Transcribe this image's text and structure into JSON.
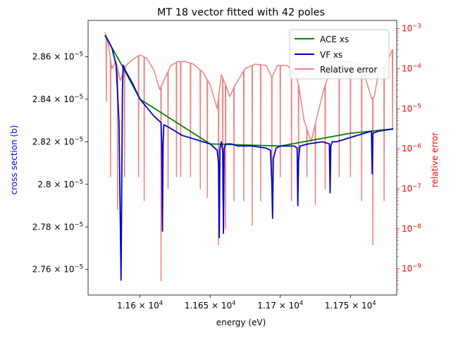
{
  "chart_data": {
    "type": "line",
    "title": "MT 18 vector fitted with 42 poles",
    "xlabel": "energy (eV)",
    "ylabel_left": "cross section (b)",
    "ylabel_right": "relative error",
    "xlim": [
      11563,
      11783
    ],
    "ylim_left": [
      2.748e-05,
      2.877e-05
    ],
    "ylim_right": [
      2.2e-10,
      0.0016
    ],
    "yscale_right": "log",
    "xticks": [
      {
        "value": 11600,
        "label": "1.16 × 10^4",
        "mant": "1.16",
        "exp": "4"
      },
      {
        "value": 11650,
        "label": "1.165 × 10^4",
        "mant": "1.165",
        "exp": "4"
      },
      {
        "value": 11700,
        "label": "1.17 × 10^4",
        "mant": "1.17",
        "exp": "4"
      },
      {
        "value": 11750,
        "label": "1.175 × 10^4",
        "mant": "1.175",
        "exp": "4"
      }
    ],
    "yticks_left": [
      {
        "value": 2.86e-05,
        "label": "2.86 × 10^-5",
        "mant": "2.86",
        "exp": "−5"
      },
      {
        "value": 2.84e-05,
        "label": "2.84 × 10^-5",
        "mant": "2.84",
        "exp": "−5"
      },
      {
        "value": 2.82e-05,
        "label": "2.82 × 10^-5",
        "mant": "2.82",
        "exp": "−5"
      },
      {
        "value": 2.8e-05,
        "label": "2.8 × 10^-5",
        "mant": "2.8",
        "exp": "−5"
      },
      {
        "value": 2.78e-05,
        "label": "2.78 × 10^-5",
        "mant": "2.78",
        "exp": "−5"
      },
      {
        "value": 2.76e-05,
        "label": "2.76 × 10^-5",
        "mant": "2.76",
        "exp": "−5"
      }
    ],
    "yticks_right": [
      {
        "value": 0.001,
        "label": "10^-3",
        "exp": "−3"
      },
      {
        "value": 0.0001,
        "label": "10^-4",
        "exp": "−4"
      },
      {
        "value": 1e-05,
        "label": "10^-5",
        "exp": "−5"
      },
      {
        "value": 1e-06,
        "label": "10^-6",
        "exp": "−6"
      },
      {
        "value": 1e-07,
        "label": "10^-7",
        "exp": "−7"
      },
      {
        "value": 1e-08,
        "label": "10^-8",
        "exp": "−8"
      },
      {
        "value": 1e-09,
        "label": "10^-9",
        "exp": "−9"
      }
    ],
    "legend": {
      "position": "top-right",
      "entries": [
        {
          "label": "ACE xs",
          "color": "#008000"
        },
        {
          "label": "VF xs",
          "color": "#0000cc"
        },
        {
          "label": "Relative error",
          "color": "#f08080"
        }
      ]
    },
    "series": [
      {
        "name": "VF xs",
        "axis": "left",
        "color": "#0000cc",
        "x": [
          11575,
          11577,
          11580,
          11583,
          11585,
          11586,
          11586.5,
          11587,
          11587.5,
          11588,
          11590,
          11595,
          11600,
          11610,
          11615,
          11615.5,
          11616,
          11616.5,
          11617,
          11620,
          11630,
          11640,
          11650,
          11655,
          11656,
          11656.5,
          11657,
          11658,
          11659,
          11659.5,
          11660,
          11661,
          11665,
          11670,
          11680,
          11690,
          11693,
          11694,
          11694.5,
          11695,
          11697,
          11700,
          11710,
          11712,
          11712.5,
          11713,
          11714,
          11720,
          11730,
          11735,
          11735.5,
          11736,
          11737,
          11740,
          11750,
          11760,
          11765,
          11765.5,
          11766,
          11770,
          11780,
          11780.5
        ],
        "y": [
          2.87e-05,
          2.868e-05,
          2.864e-05,
          2.856e-05,
          2.83e-05,
          2.78e-05,
          2.755e-05,
          2.8e-05,
          2.845e-05,
          2.856e-05,
          2.853e-05,
          2.847e-05,
          2.84e-05,
          2.832e-05,
          2.829e-05,
          2.82e-05,
          2.778e-05,
          2.82e-05,
          2.828e-05,
          2.827e-05,
          2.823e-05,
          2.821e-05,
          2.819e-05,
          2.816e-05,
          2.81e-05,
          2.775e-05,
          2.817e-05,
          2.82e-05,
          2.815e-05,
          2.777e-05,
          2.817e-05,
          2.819e-05,
          2.819e-05,
          2.818e-05,
          2.818e-05,
          2.817e-05,
          2.816e-05,
          2.8e-05,
          2.784e-05,
          2.812e-05,
          2.817e-05,
          2.818e-05,
          2.818e-05,
          2.817e-05,
          2.79e-05,
          2.811e-05,
          2.818e-05,
          2.819e-05,
          2.82e-05,
          2.819e-05,
          2.796e-05,
          2.818e-05,
          2.82e-05,
          2.82e-05,
          2.822e-05,
          2.824e-05,
          2.825e-05,
          2.805e-05,
          2.824e-05,
          2.825e-05,
          2.826e-05,
          2.826e-05
        ]
      },
      {
        "name": "ACE xs",
        "axis": "left",
        "color": "#008000",
        "x": [
          11575,
          11587,
          11600,
          11650,
          11700,
          11750,
          11780
        ],
        "y": [
          2.87e-05,
          2.856e-05,
          2.84e-05,
          2.819e-05,
          2.818e-05,
          2.824e-05,
          2.826e-05
        ]
      },
      {
        "name": "Relative error",
        "axis": "right",
        "color": "#f08080",
        "baseline": {
          "x": [
            11575,
            11577,
            11580,
            11583,
            11586,
            11590,
            11595,
            11600,
            11605,
            11610,
            11614,
            11618,
            11622,
            11627,
            11632,
            11638,
            11645,
            11650,
            11655,
            11658,
            11661,
            11664,
            11668,
            11675,
            11682,
            11690,
            11694,
            11698,
            11705,
            11711,
            11713,
            11717,
            11722,
            11726,
            11731,
            11735,
            11740,
            11745,
            11750,
            11755,
            11760,
            11765,
            11767,
            11770,
            11775,
            11780
          ],
          "y": [
            0.0008,
            0.0005,
            0.0001,
            0.00015,
            5e-05,
            0.00012,
            0.00017,
            0.00022,
            0.00018,
            9e-05,
            3e-05,
            6e-05,
            0.00012,
            0.00015,
            0.00015,
            0.00013,
            8e-05,
            4e-05,
            1e-05,
            7e-05,
            4e-05,
            2e-05,
            4e-05,
            0.0001,
            0.00013,
            0.00012,
            6e-05,
            0.00012,
            0.00012,
            7e-05,
            4e-05,
            5e-06,
            1.5e-06,
            6e-06,
            3e-05,
            8e-05,
            0.00011,
            0.00014,
            0.00015,
            0.00013,
            7e-05,
            1.8e-05,
            2e-05,
            8e-05,
            0.00012,
            0.0003
          ]
        },
        "dips": [
          {
            "x": 11576,
            "y": 1.5e-05
          },
          {
            "x": 11579,
            "y": 2e-07
          },
          {
            "x": 11584,
            "y": 3e-08
          },
          {
            "x": 11589,
            "y": 2e-07
          },
          {
            "x": 11599,
            "y": 2e-07
          },
          {
            "x": 11603,
            "y": 5e-08
          },
          {
            "x": 11615,
            "y": 5e-10
          },
          {
            "x": 11620,
            "y": 1e-07
          },
          {
            "x": 11626,
            "y": 2e-07
          },
          {
            "x": 11629,
            "y": 2e-07
          },
          {
            "x": 11636,
            "y": 2e-07
          },
          {
            "x": 11643,
            "y": 1e-07
          },
          {
            "x": 11648,
            "y": 6e-08
          },
          {
            "x": 11656,
            "y": 4e-09
          },
          {
            "x": 11659,
            "y": 5e-08
          },
          {
            "x": 11661,
            "y": 1e-08
          },
          {
            "x": 11667,
            "y": 5e-08
          },
          {
            "x": 11674,
            "y": 5e-08
          },
          {
            "x": 11680,
            "y": 1.2e-08
          },
          {
            "x": 11686,
            "y": 5e-08
          },
          {
            "x": 11694,
            "y": 1e-07
          },
          {
            "x": 11700,
            "y": 2e-07
          },
          {
            "x": 11708,
            "y": 5e-08
          },
          {
            "x": 11713,
            "y": 2e-07
          },
          {
            "x": 11719,
            "y": 2e-07
          },
          {
            "x": 11725,
            "y": 4e-08
          },
          {
            "x": 11732,
            "y": 1e-07
          },
          {
            "x": 11742,
            "y": 2e-07
          },
          {
            "x": 11750,
            "y": 2e-07
          },
          {
            "x": 11758,
            "y": 5e-08
          },
          {
            "x": 11766,
            "y": 4e-09
          },
          {
            "x": 11774,
            "y": 5e-08
          },
          {
            "x": 11780,
            "y": 3e-06
          }
        ]
      }
    ]
  }
}
